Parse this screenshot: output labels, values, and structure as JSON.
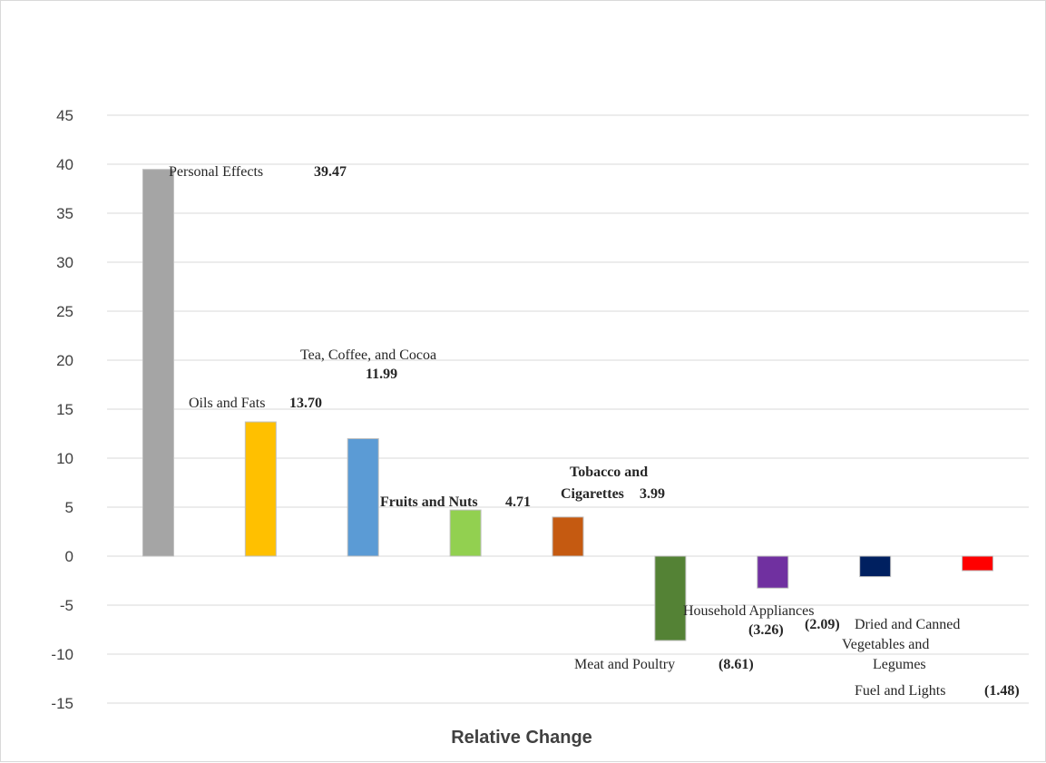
{
  "chart_data": {
    "type": "bar",
    "xlabel": "Relative Change",
    "ylim": [
      -15,
      45
    ],
    "yticks": [
      45,
      40,
      35,
      30,
      25,
      20,
      15,
      10,
      5,
      0,
      -5,
      -10,
      -15
    ],
    "grid": true,
    "categories": [
      "Personal Effects",
      "Oils and Fats",
      "Tea, Coffee, and Cocoa",
      "Fruits and Nuts",
      "Tobacco and Cigarettes",
      "Meat and Poultry",
      "Household Appliances",
      "Dried and Canned Vegetables and Legumes",
      "Fuel and Lights"
    ],
    "values": [
      39.47,
      13.7,
      11.99,
      4.71,
      3.99,
      -8.61,
      -3.26,
      -2.09,
      -1.48
    ],
    "value_labels": [
      "39.47",
      "13.70",
      "11.99",
      "4.71",
      "3.99",
      "(8.61)",
      "(3.26)",
      "(2.09)",
      "(1.48)"
    ],
    "colors": [
      "#a5a5a5",
      "#ffc000",
      "#5b9bd5",
      "#92d050",
      "#c55a11",
      "#548235",
      "#7030a0",
      "#002060",
      "#ff0000"
    ]
  }
}
